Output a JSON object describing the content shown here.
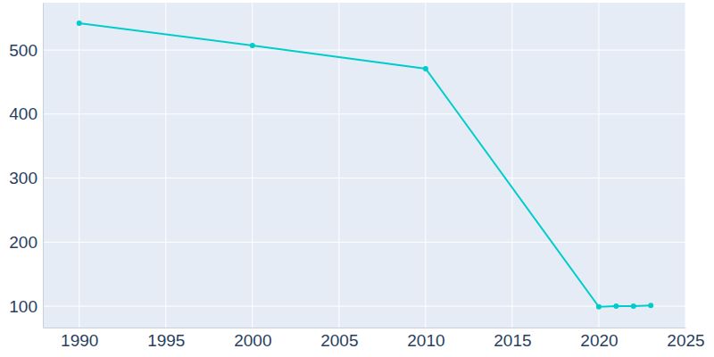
{
  "chart_data": {
    "type": "line",
    "x": [
      1990,
      2000,
      2010,
      2020,
      2021,
      2022,
      2023
    ],
    "values": [
      542,
      507,
      471,
      99,
      100,
      100,
      101
    ],
    "color": "#00cccc",
    "marker": "circle",
    "xlim": [
      1987.9,
      2025
    ],
    "ylim": [
      66.6,
      574
    ],
    "xticks": [
      1990,
      1995,
      2000,
      2005,
      2010,
      2015,
      2020,
      2025
    ],
    "yticks": [
      100,
      200,
      300,
      400,
      500
    ],
    "grid": true
  }
}
